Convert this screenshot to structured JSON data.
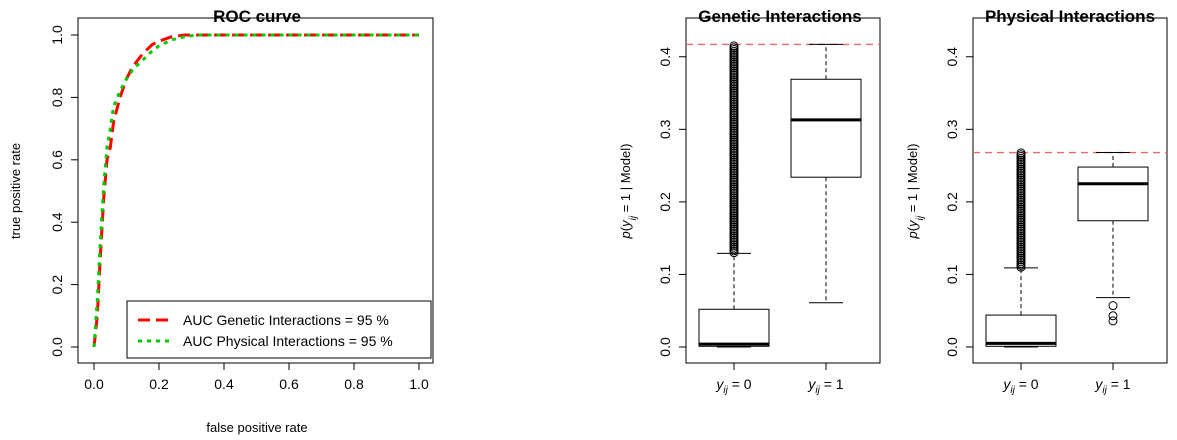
{
  "chart_data": [
    {
      "type": "line",
      "title": "ROC curve",
      "xlabel": "false positive rate",
      "ylabel": "true positive rate",
      "xlim": [
        0,
        1
      ],
      "ylim": [
        0,
        1
      ],
      "x_ticks": [
        "0.0",
        "0.2",
        "0.4",
        "0.6",
        "0.8",
        "1.0"
      ],
      "y_ticks": [
        "0.0",
        "0.2",
        "0.4",
        "0.6",
        "0.8",
        "1.0"
      ],
      "grid": false,
      "legend": "bottom-right",
      "series": [
        {
          "name": "AUC Genetic Interactions = 95 %",
          "color": "#ff0000",
          "dash": "dashed",
          "x": [
            0,
            0.01,
            0.02,
            0.03,
            0.04,
            0.05,
            0.06,
            0.08,
            0.1,
            0.12,
            0.15,
            0.18,
            0.2,
            0.24,
            0.28,
            0.32,
            0.5,
            0.7,
            1.0
          ],
          "y": [
            0,
            0.1,
            0.3,
            0.48,
            0.6,
            0.64,
            0.72,
            0.8,
            0.86,
            0.9,
            0.94,
            0.97,
            0.98,
            0.995,
            1.0,
            1.0,
            1.0,
            1.0,
            1.0
          ]
        },
        {
          "name": "AUC Physical Interactions = 95 %",
          "color": "#00cc00",
          "dash": "dotted",
          "x": [
            0,
            0.01,
            0.02,
            0.03,
            0.04,
            0.05,
            0.06,
            0.08,
            0.1,
            0.12,
            0.15,
            0.18,
            0.2,
            0.24,
            0.28,
            0.32,
            0.5,
            0.7,
            1.0
          ],
          "y": [
            0,
            0.15,
            0.35,
            0.52,
            0.64,
            0.7,
            0.77,
            0.82,
            0.86,
            0.89,
            0.92,
            0.95,
            0.965,
            0.985,
            0.995,
            1.0,
            1.0,
            1.0,
            1.0
          ]
        }
      ]
    },
    {
      "type": "box",
      "title": "Genetic Interactions",
      "ylabel": "p(y_ij = 1 | Model)",
      "ylim": [
        0,
        0.43
      ],
      "y_ticks": [
        "0.0",
        "0.1",
        "0.2",
        "0.3",
        "0.4"
      ],
      "categories": [
        "y_ij = 0",
        "y_ij = 1"
      ],
      "reference_line": {
        "y": 0.417,
        "color": "#e86a6a",
        "style": "dashed"
      },
      "boxes": [
        {
          "min": 0,
          "q1": 0.001,
          "median": 0.004,
          "q3": 0.052,
          "max": 0.129,
          "outlier_range": [
            0.13,
            0.417
          ]
        },
        {
          "min": 0.061,
          "q1": 0.234,
          "median": 0.313,
          "q3": 0.369,
          "max": 0.417,
          "outliers": []
        }
      ]
    },
    {
      "type": "box",
      "title": "Physical Interactions",
      "ylabel": "p(y_ij = 1 | Model)",
      "ylim": [
        0,
        0.43
      ],
      "y_ticks": [
        "0.0",
        "0.1",
        "0.2",
        "0.3",
        "0.4"
      ],
      "categories": [
        "y_ij = 0",
        "y_ij = 1"
      ],
      "reference_line": {
        "y": 0.268,
        "color": "#e86a6a",
        "style": "dashed"
      },
      "boxes": [
        {
          "min": 0,
          "q1": 0.001,
          "median": 0.005,
          "q3": 0.044,
          "max": 0.109,
          "outlier_range": [
            0.11,
            0.268
          ]
        },
        {
          "min": 0.068,
          "q1": 0.174,
          "median": 0.225,
          "q3": 0.248,
          "max": 0.268,
          "outliers": [
            0.057,
            0.043,
            0.036
          ]
        }
      ]
    }
  ]
}
